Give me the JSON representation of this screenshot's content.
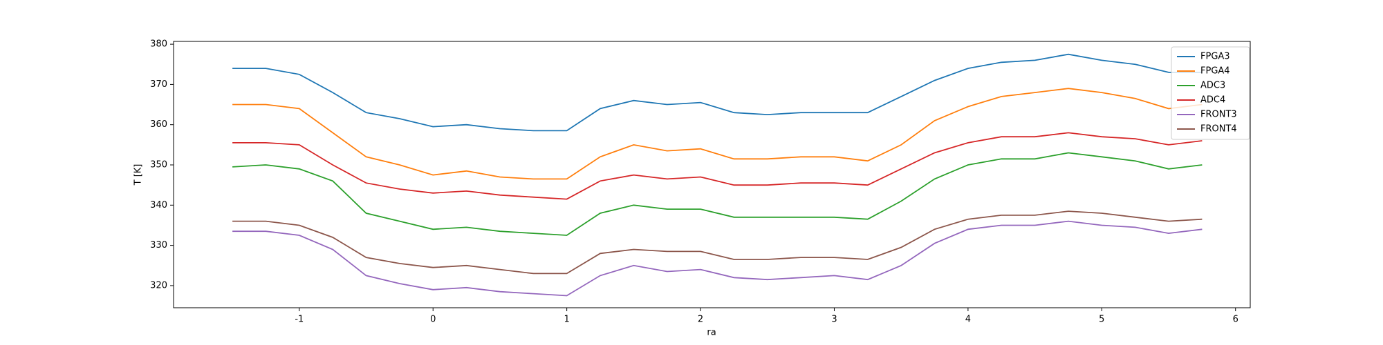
{
  "chart_data": {
    "type": "line",
    "x_label": "ra",
    "y_label": "T [K]",
    "x": [
      -1.5,
      -1.25,
      -1,
      -0.75,
      -0.5,
      -0.25,
      0,
      0.25,
      0.5,
      0.75,
      1,
      1.25,
      1.5,
      1.75,
      2,
      2.25,
      2.5,
      2.75,
      3,
      3.25,
      3.5,
      3.75,
      4,
      4.25,
      4.5,
      4.75,
      5,
      5.25,
      5.5,
      5.75
    ],
    "series": [
      {
        "name": "FPGA3",
        "color": "#1f77b4",
        "values": [
          374,
          374,
          372.5,
          368,
          363,
          361.5,
          359.5,
          360,
          359,
          358.5,
          358.5,
          364,
          366,
          365,
          365.5,
          363,
          362.5,
          363,
          363,
          363,
          367,
          371,
          374,
          375.5,
          376,
          377.5,
          376,
          375,
          373,
          373
        ]
      },
      {
        "name": "FPGA4",
        "color": "#ff7f0e",
        "values": [
          365,
          365,
          364,
          358,
          352,
          350,
          347.5,
          348.5,
          347,
          346.5,
          346.5,
          352,
          355,
          353.5,
          354,
          351.5,
          351.5,
          352,
          352,
          351,
          355,
          361,
          364.5,
          367,
          368,
          369,
          368,
          366.5,
          364,
          365
        ]
      },
      {
        "name": "ADC3",
        "color": "#2ca02c",
        "values": [
          349.5,
          350,
          349,
          346,
          338,
          336,
          334,
          334.5,
          333.5,
          333,
          332.5,
          338,
          340,
          339,
          339,
          337,
          337,
          337,
          337,
          336.5,
          341,
          346.5,
          350,
          351.5,
          351.5,
          353,
          352,
          351,
          349,
          350
        ]
      },
      {
        "name": "ADC4",
        "color": "#d62728",
        "values": [
          355.5,
          355.5,
          355,
          350,
          345.5,
          344,
          343,
          343.5,
          342.5,
          342,
          341.5,
          346,
          347.5,
          346.5,
          347,
          345,
          345,
          345.5,
          345.5,
          345,
          349,
          353,
          355.5,
          357,
          357,
          358,
          357,
          356.5,
          355,
          356
        ]
      },
      {
        "name": "FRONT3",
        "color": "#9467bd",
        "values": [
          333.5,
          333.5,
          332.5,
          329,
          322.5,
          320.5,
          319,
          319.5,
          318.5,
          318,
          317.5,
          322.5,
          325,
          323.5,
          324,
          322,
          321.5,
          322,
          322.5,
          321.5,
          325,
          330.5,
          334,
          335,
          335,
          336,
          335,
          334.5,
          333,
          334
        ]
      },
      {
        "name": "FRONT4",
        "color": "#8c564b",
        "values": [
          336,
          336,
          335,
          332,
          327,
          325.5,
          324.5,
          325,
          324,
          323,
          323,
          328,
          329,
          328.5,
          328.5,
          326.5,
          326.5,
          327,
          327,
          326.5,
          329.5,
          334,
          336.5,
          337.5,
          337.5,
          338.5,
          338,
          337,
          336,
          336.5
        ]
      }
    ],
    "xlim": [
      -1.94,
      6.11
    ],
    "xticks": [
      -1,
      0,
      1,
      2,
      3,
      4,
      5,
      6
    ],
    "ylim": [
      314.5,
      380.7
    ],
    "yticks": [
      320,
      330,
      340,
      350,
      360,
      370,
      380
    ],
    "grid": false,
    "legend_position": "upper right"
  }
}
